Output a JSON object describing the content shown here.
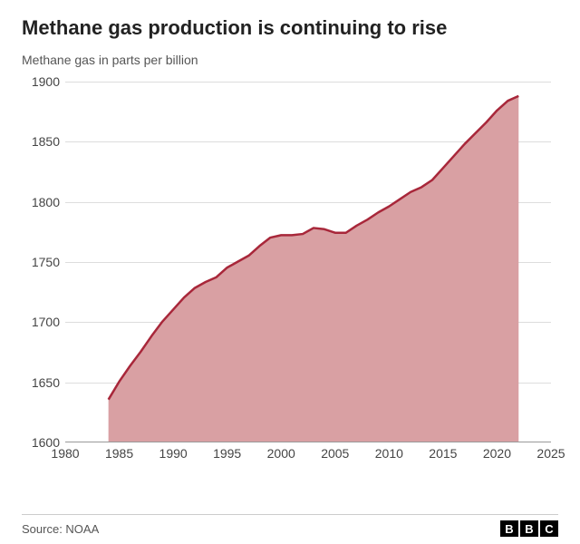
{
  "title": "Methane gas production is continuing to rise",
  "subtitle": "Methane gas in parts per billion",
  "source_label": "Source: NOAA",
  "logo_letters": [
    "B",
    "B",
    "C"
  ],
  "chart": {
    "type": "area",
    "background_color": "#ffffff",
    "grid_color": "#dddddd",
    "axis_color": "#999999",
    "line_color": "#a8273a",
    "fill_color": "#d9a0a3",
    "fill_opacity": 1.0,
    "line_width": 2.5,
    "title_fontsize": 22,
    "subtitle_fontsize": 14,
    "tick_fontsize": 14,
    "tick_color": "#444444",
    "xlim": [
      1980,
      2025
    ],
    "ylim": [
      1600,
      1900
    ],
    "ytick_step": 50,
    "xtick_step": 5,
    "y_ticks": [
      1600,
      1650,
      1700,
      1750,
      1800,
      1850,
      1900
    ],
    "x_ticks": [
      1980,
      1985,
      1990,
      1995,
      2000,
      2005,
      2010,
      2015,
      2020,
      2025
    ],
    "series": {
      "x": [
        1984,
        1985,
        1986,
        1987,
        1988,
        1989,
        1990,
        1991,
        1992,
        1993,
        1994,
        1995,
        1996,
        1997,
        1998,
        1999,
        2000,
        2001,
        2002,
        2003,
        2004,
        2005,
        2006,
        2007,
        2008,
        2009,
        2010,
        2011,
        2012,
        2013,
        2014,
        2015,
        2016,
        2017,
        2018,
        2019,
        2020,
        2021,
        2022
      ],
      "y": [
        1635,
        1650,
        1663,
        1675,
        1688,
        1700,
        1710,
        1720,
        1728,
        1733,
        1737,
        1745,
        1750,
        1755,
        1763,
        1770,
        1772,
        1772,
        1773,
        1778,
        1777,
        1774,
        1774,
        1780,
        1785,
        1791,
        1796,
        1802,
        1808,
        1812,
        1818,
        1828,
        1838,
        1848,
        1857,
        1866,
        1876,
        1884,
        1888
      ]
    }
  }
}
